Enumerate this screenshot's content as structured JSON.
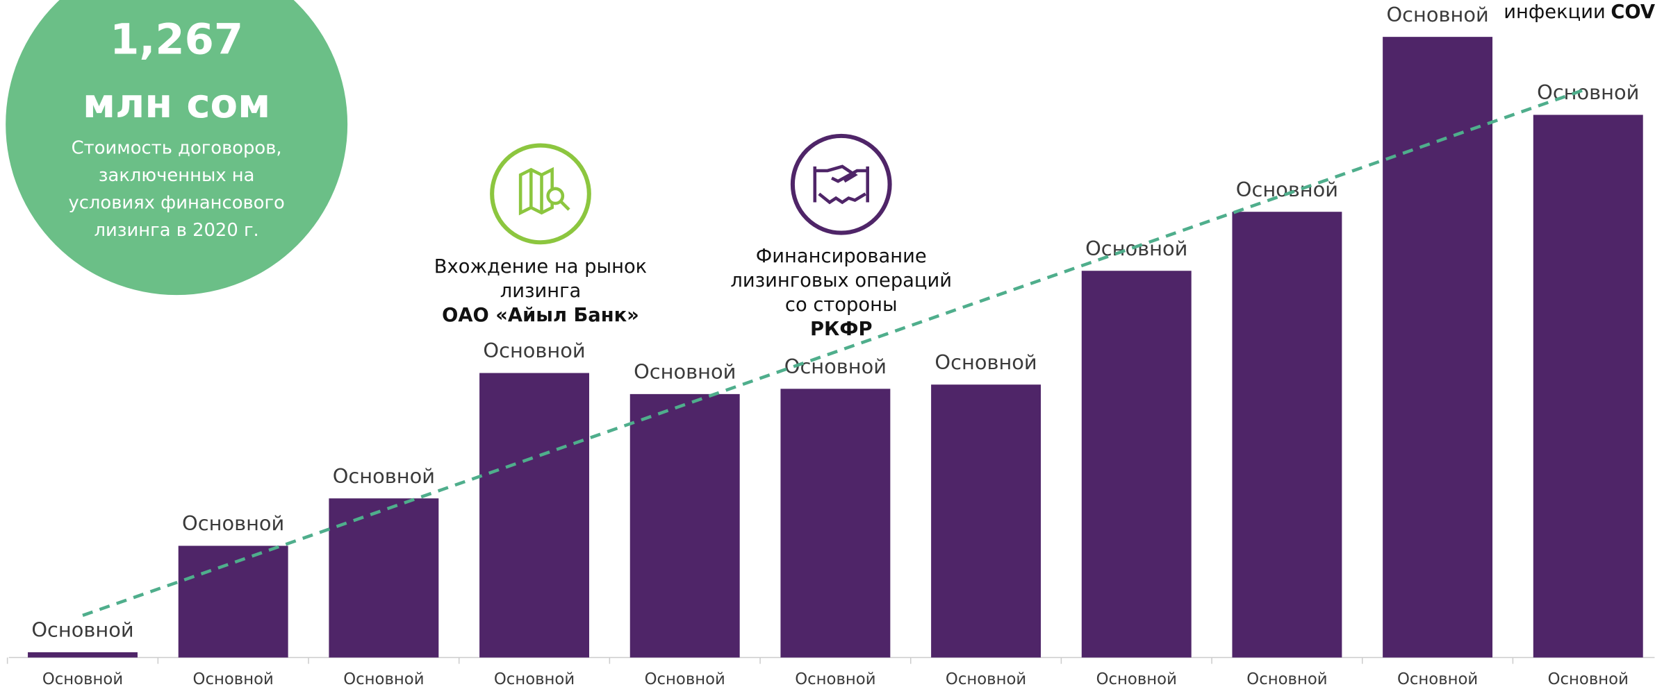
{
  "chart_data": {
    "type": "bar",
    "categories": [
      "Основной",
      "Основной",
      "Основной",
      "Основной",
      "Основной",
      "Основной",
      "Основной",
      "Основной",
      "Основной",
      "Основной",
      "Основной"
    ],
    "values": [
      5,
      106,
      151,
      270,
      250,
      255,
      259,
      367,
      423,
      589,
      515
    ],
    "value_labels": [
      "Основной",
      "Основной",
      "Основной",
      "Основной",
      "Основной",
      "Основной",
      "Основной",
      "Основной",
      "Основной",
      "Основной",
      "Основной"
    ],
    "color": "#4f2568",
    "ylim": [
      0,
      600
    ],
    "trendline": true,
    "trendline_color": "#4fae8c",
    "highlight": {
      "value": "1,267",
      "unit": "млн сом",
      "description": [
        "Стоимость договоров,",
        "заключенных на",
        "условиях финансового",
        "лизинга в 2020 г."
      ],
      "color": "#6bbf87"
    },
    "annotations": [
      {
        "lines": [
          "Вхождение на рынок",
          "лизинга"
        ],
        "bold": "ОАО «Айыл Банк»"
      },
      {
        "lines": [
          "Финансирование",
          "лизинговых операций",
          "со стороны"
        ],
        "bold": "РКФР"
      },
      {
        "text": "инфекции",
        "bold": "COV"
      }
    ]
  }
}
